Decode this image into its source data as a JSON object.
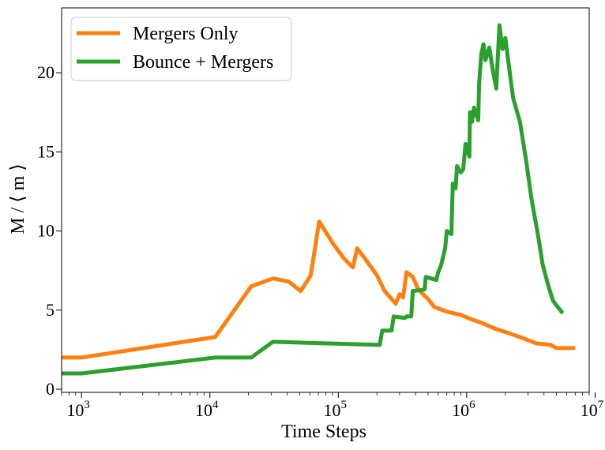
{
  "chart_data": {
    "type": "line",
    "xlabel": "Time Steps",
    "ylabel": "M / ⟨ m ⟩",
    "xscale": "log",
    "xlim": [
      700,
      9000000
    ],
    "ylim": [
      -0.2,
      24.1
    ],
    "grid": false,
    "legend_position": "top-left",
    "x_ticks": [
      {
        "value": 1000,
        "base": "10",
        "exp": "3"
      },
      {
        "value": 10000,
        "base": "10",
        "exp": "4"
      },
      {
        "value": 100000,
        "base": "10",
        "exp": "5"
      },
      {
        "value": 1000000,
        "base": "10",
        "exp": "6"
      },
      {
        "value": 10000000,
        "base": "10",
        "exp": "7"
      }
    ],
    "y_ticks": [
      {
        "value": 0,
        "label": "0"
      },
      {
        "value": 5,
        "label": "5"
      },
      {
        "value": 10,
        "label": "10"
      },
      {
        "value": 15,
        "label": "15"
      },
      {
        "value": 20,
        "label": "20"
      }
    ],
    "series": [
      {
        "name": "Mergers Only",
        "color": "#ff7f0e",
        "points": [
          [
            700,
            2.0
          ],
          [
            1000,
            2.0
          ],
          [
            11000,
            3.3
          ],
          [
            21000,
            6.5
          ],
          [
            31000,
            7.0
          ],
          [
            41000,
            6.8
          ],
          [
            51000,
            6.2
          ],
          [
            61000,
            7.2
          ],
          [
            71000,
            10.6
          ],
          [
            91000,
            9.2
          ],
          [
            110000,
            8.3
          ],
          [
            130000,
            7.7
          ],
          [
            140000,
            8.9
          ],
          [
            160000,
            8.3
          ],
          [
            200000,
            7.2
          ],
          [
            230000,
            6.2
          ],
          [
            280000,
            5.4
          ],
          [
            300000,
            6.0
          ],
          [
            320000,
            5.8
          ],
          [
            340000,
            7.4
          ],
          [
            380000,
            7.1
          ],
          [
            420000,
            6.3
          ],
          [
            500000,
            5.7
          ],
          [
            560000,
            5.2
          ],
          [
            700000,
            4.9
          ],
          [
            900000,
            4.7
          ],
          [
            1100000,
            4.4
          ],
          [
            1300000,
            4.2
          ],
          [
            1700000,
            3.8
          ],
          [
            2200000,
            3.5
          ],
          [
            2800000,
            3.2
          ],
          [
            3500000,
            2.9
          ],
          [
            4500000,
            2.8
          ],
          [
            5000000,
            2.6
          ],
          [
            7000000,
            2.6
          ]
        ]
      },
      {
        "name": "Bounce + Mergers",
        "color": "#2ca02c",
        "points": [
          [
            700,
            1.0
          ],
          [
            1000,
            1.0
          ],
          [
            11000,
            2.0
          ],
          [
            21000,
            2.0
          ],
          [
            31000,
            3.0
          ],
          [
            210000,
            2.8
          ],
          [
            220000,
            3.7
          ],
          [
            260000,
            3.7
          ],
          [
            270000,
            4.6
          ],
          [
            330000,
            4.5
          ],
          [
            340000,
            4.6
          ],
          [
            370000,
            4.6
          ],
          [
            380000,
            6.2
          ],
          [
            470000,
            6.3
          ],
          [
            480000,
            7.1
          ],
          [
            580000,
            6.9
          ],
          [
            600000,
            7.4
          ],
          [
            630000,
            7.8
          ],
          [
            680000,
            8.9
          ],
          [
            700000,
            10.0
          ],
          [
            760000,
            9.8
          ],
          [
            780000,
            13.0
          ],
          [
            820000,
            12.7
          ],
          [
            840000,
            14.1
          ],
          [
            900000,
            13.7
          ],
          [
            940000,
            13.9
          ],
          [
            980000,
            15.5
          ],
          [
            1050000,
            14.7
          ],
          [
            1060000,
            17.5
          ],
          [
            1100000,
            16.9
          ],
          [
            1140000,
            17.8
          ],
          [
            1230000,
            17.0
          ],
          [
            1250000,
            19.3
          ],
          [
            1300000,
            21.2
          ],
          [
            1350000,
            21.8
          ],
          [
            1400000,
            20.8
          ],
          [
            1500000,
            21.6
          ],
          [
            1600000,
            20.1
          ],
          [
            1700000,
            19.0
          ],
          [
            1750000,
            21.1
          ],
          [
            1800000,
            23.0
          ],
          [
            1900000,
            21.5
          ],
          [
            2000000,
            22.2
          ],
          [
            2200000,
            19.6
          ],
          [
            2300000,
            18.4
          ],
          [
            2600000,
            16.9
          ],
          [
            2900000,
            14.5
          ],
          [
            3200000,
            12.0
          ],
          [
            3600000,
            9.7
          ],
          [
            3900000,
            7.9
          ],
          [
            4300000,
            6.6
          ],
          [
            4700000,
            5.6
          ],
          [
            5000000,
            5.3
          ],
          [
            5600000,
            4.8
          ]
        ]
      }
    ]
  }
}
